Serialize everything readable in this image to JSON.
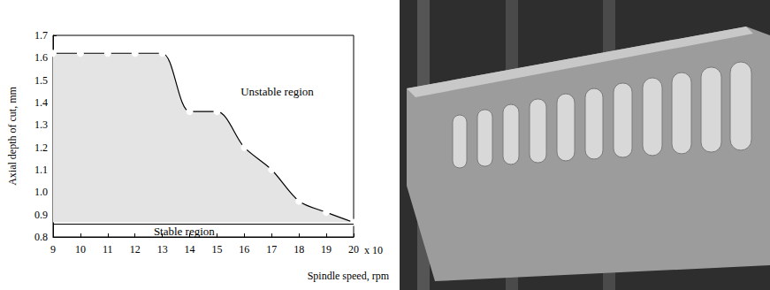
{
  "chart_data": {
    "type": "line",
    "x": [
      9,
      10,
      11,
      12,
      13,
      14,
      15,
      16,
      17,
      18,
      19,
      20
    ],
    "values": [
      1.62,
      1.62,
      1.62,
      1.62,
      1.62,
      1.36,
      1.36,
      1.2,
      1.1,
      0.96,
      0.91,
      0.865
    ],
    "xlim": [
      9,
      20
    ],
    "xticks": [
      9,
      10,
      11,
      12,
      13,
      14,
      15,
      16,
      17,
      18,
      19,
      20
    ],
    "ylim": [
      0.8,
      1.7
    ],
    "yticks": [
      0.8,
      0.9,
      {
        "value": 1,
        "label": "1.0"
      },
      1.1,
      1.2,
      1.3,
      1.4,
      1.5,
      1.6,
      1.7
    ],
    "x_label": "Spindle speed, rpm",
    "x_multiplier_label": "x 10",
    "y_label": "Axial depth of cut, mm",
    "stable_limit": 0.865,
    "annotations": [
      {
        "text": "Unstable region",
        "x": 17.2,
        "y": 1.45
      },
      {
        "text": "Stable region",
        "x": 13.8,
        "y": 0.825
      }
    ],
    "marker": "open_circle",
    "line_style": "solid",
    "color": "#000000",
    "grid": false
  }
}
